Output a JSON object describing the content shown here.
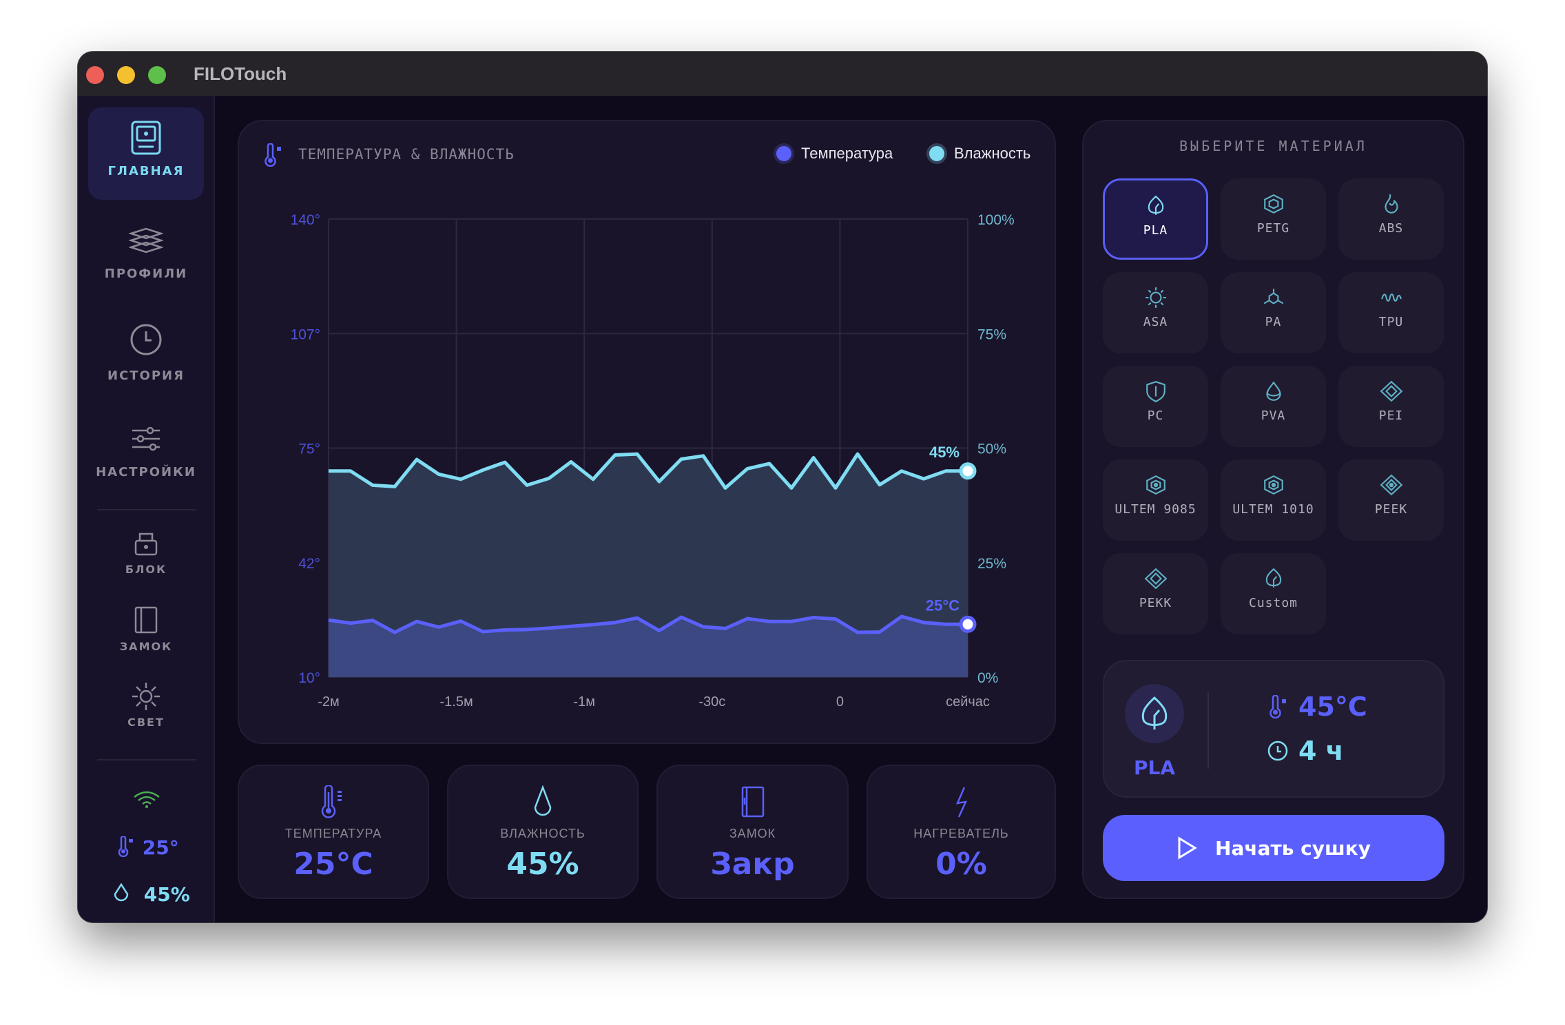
{
  "app": {
    "title": "FILOTouch"
  },
  "sidebar": {
    "items": [
      {
        "label": "ГЛАВНАЯ",
        "icon": "home-device-icon",
        "active": true
      },
      {
        "label": "ПРОФИЛИ",
        "icon": "layers-icon"
      },
      {
        "label": "ИСТОРИЯ",
        "icon": "clock-icon"
      },
      {
        "label": "НАСТРОЙКИ",
        "icon": "sliders-icon"
      },
      {
        "label": "БЛОК",
        "icon": "lock-icon"
      },
      {
        "label": "ЗАМОК",
        "icon": "door-icon"
      },
      {
        "label": "СВЕТ",
        "icon": "sun-icon"
      }
    ],
    "status": {
      "wifi": "connected",
      "temp": "25°",
      "humidity": "45%"
    }
  },
  "chart_panel": {
    "title": "ТЕМПЕРАТУРА & ВЛАЖНОСТЬ"
  },
  "chart_data": {
    "type": "area",
    "x_tick_labels": [
      "-2м",
      "-1.5м",
      "-1м",
      "-30с",
      "0",
      "сейчас"
    ],
    "y_left": {
      "ticks": [
        "140°",
        "107°",
        "75°",
        "42°",
        "10°"
      ],
      "range": [
        10,
        140
      ]
    },
    "y_right": {
      "ticks": [
        "100%",
        "75%",
        "50%",
        "25%",
        "0%"
      ],
      "range": [
        0,
        100
      ]
    },
    "grid": true,
    "legend_position": "top-right",
    "series": [
      {
        "name": "Температура",
        "axis": "left",
        "color": "#5b60fb",
        "current_label": "25°C",
        "values": [
          26.2,
          25.3,
          26.1,
          22.7,
          25.8,
          24.2,
          25.9,
          22.9,
          23.4,
          23.5,
          23.9,
          24.4,
          24.9,
          25.5,
          26.8,
          23.2,
          27.0,
          24.3,
          23.8,
          26.6,
          25.8,
          25.8,
          26.9,
          26.5,
          22.7,
          22.8,
          27.2,
          25.5,
          25.0,
          25.0
        ]
      },
      {
        "name": "Влажность",
        "axis": "right",
        "color": "#7fdcf2",
        "current_label": "45%",
        "values": [
          45.0,
          45.0,
          41.9,
          41.6,
          47.5,
          44.3,
          43.2,
          45.2,
          46.9,
          41.9,
          43.4,
          47.0,
          43.2,
          48.5,
          48.7,
          42.7,
          47.6,
          48.3,
          41.3,
          45.5,
          46.6,
          41.3,
          47.9,
          41.3,
          48.7,
          42.0,
          45.0,
          43.3,
          45.0,
          45.0
        ]
      }
    ]
  },
  "materials": {
    "title": "ВЫБЕРИТЕ МАТЕРИАЛ",
    "items": [
      {
        "label": "PLA",
        "icon": "leaf-icon",
        "selected": true
      },
      {
        "label": "PETG",
        "icon": "hexagon-icon"
      },
      {
        "label": "ABS",
        "icon": "flame-icon"
      },
      {
        "label": "ASA",
        "icon": "sun-icon"
      },
      {
        "label": "PA",
        "icon": "molecule-icon"
      },
      {
        "label": "TPU",
        "icon": "wave-icon"
      },
      {
        "label": "PC",
        "icon": "shield-icon"
      },
      {
        "label": "PVA",
        "icon": "drop-icon"
      },
      {
        "label": "PEI",
        "icon": "diamond-icon"
      },
      {
        "label": "ULTEM 9085",
        "icon": "hexagon-dot-icon"
      },
      {
        "label": "ULTEM 1010",
        "icon": "hexagon-dot-icon"
      },
      {
        "label": "PEEK",
        "icon": "diamond-dot-icon"
      },
      {
        "label": "PEKK",
        "icon": "diamond-icon"
      },
      {
        "label": "Custom",
        "icon": "leaf-icon"
      }
    ]
  },
  "selected_profile": {
    "material": "PLA",
    "temperature": "45°C",
    "duration": "4 ч"
  },
  "start_button": {
    "label": "Начать сушку"
  },
  "stats": [
    {
      "label": "ТЕМПЕРАТУРА",
      "value": "25°C",
      "color": "#5b60fb",
      "icon": "thermometer-icon"
    },
    {
      "label": "ВЛАЖНОСТЬ",
      "value": "45%",
      "color": "#7fdcf2",
      "icon": "drop-icon"
    },
    {
      "label": "ЗАМОК",
      "value": "Закр",
      "color": "#5b60fb",
      "icon": "door-icon"
    },
    {
      "label": "НАГРЕВАТЕЛЬ",
      "value": "0%",
      "color": "#5b60fb",
      "icon": "lightning-icon"
    }
  ],
  "colors": {
    "accent": "#5b60fb",
    "cyan": "#7fdcf2",
    "background": "#0e0a1b",
    "panel": "#19142a"
  }
}
